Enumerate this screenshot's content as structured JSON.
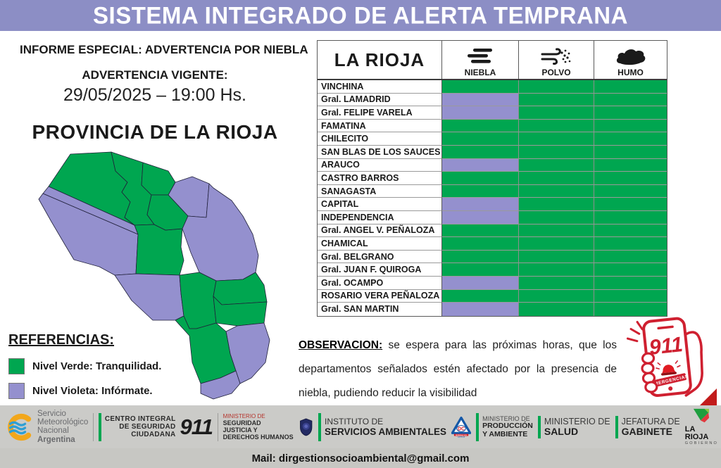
{
  "header": {
    "title": "SISTEMA INTEGRADO DE ALERTA TEMPRANA"
  },
  "alert": {
    "special_report": "INFORME ESPECIAL: ADVERTENCIA POR NIEBLA",
    "current_label": "ADVERTENCIA VIGENTE:",
    "current_datetime": "29/05/2025 – 19:00 Hs.",
    "province_title": "PROVINCIA DE LA RIOJA"
  },
  "references": {
    "title": "REFERENCIAS:",
    "items": [
      {
        "color": "green",
        "label": "Nivel Verde: Tranquilidad."
      },
      {
        "color": "violet",
        "label": "Nivel Violeta: Infórmate."
      }
    ]
  },
  "table": {
    "region_header": "LA RIOJA",
    "columns": [
      {
        "key": "niebla",
        "label": "NIEBLA",
        "icon": "fog-icon"
      },
      {
        "key": "polvo",
        "label": "POLVO",
        "icon": "dust-wind-icon"
      },
      {
        "key": "humo",
        "label": "HUMO",
        "icon": "smoke-icon"
      }
    ],
    "rows": [
      {
        "name": "VINCHINA",
        "niebla": "green",
        "polvo": "green",
        "humo": "green"
      },
      {
        "name": "Gral. LAMADRID",
        "niebla": "violet",
        "polvo": "green",
        "humo": "green"
      },
      {
        "name": "Gral. FELIPE VARELA",
        "niebla": "violet",
        "polvo": "green",
        "humo": "green"
      },
      {
        "name": "FAMATINA",
        "niebla": "green",
        "polvo": "green",
        "humo": "green"
      },
      {
        "name": "CHILECITO",
        "niebla": "green",
        "polvo": "green",
        "humo": "green"
      },
      {
        "name": "SAN BLAS DE LOS SAUCES",
        "niebla": "green",
        "polvo": "green",
        "humo": "green"
      },
      {
        "name": "ARAUCO",
        "niebla": "violet",
        "polvo": "green",
        "humo": "green"
      },
      {
        "name": "CASTRO BARROS",
        "niebla": "green",
        "polvo": "green",
        "humo": "green"
      },
      {
        "name": "SANAGASTA",
        "niebla": "green",
        "polvo": "green",
        "humo": "green"
      },
      {
        "name": "CAPITAL",
        "niebla": "violet",
        "polvo": "green",
        "humo": "green"
      },
      {
        "name": "INDEPENDENCIA",
        "niebla": "violet",
        "polvo": "green",
        "humo": "green"
      },
      {
        "name": "Gral. ANGEL V. PEÑALOZA",
        "niebla": "green",
        "polvo": "green",
        "humo": "green"
      },
      {
        "name": "CHAMICAL",
        "niebla": "green",
        "polvo": "green",
        "humo": "green"
      },
      {
        "name": "Gral. BELGRANO",
        "niebla": "green",
        "polvo": "green",
        "humo": "green"
      },
      {
        "name": "Gral. JUAN F. QUIROGA",
        "niebla": "green",
        "polvo": "green",
        "humo": "green"
      },
      {
        "name": "Gral. OCAMPO",
        "niebla": "violet",
        "polvo": "green",
        "humo": "green"
      },
      {
        "name": "ROSARIO VERA PEÑALOZA",
        "niebla": "green",
        "polvo": "green",
        "humo": "green"
      },
      {
        "name": "Gral. SAN MARTIN",
        "niebla": "violet",
        "polvo": "green",
        "humo": "green"
      }
    ]
  },
  "observation": {
    "label": "OBSERVACION:",
    "text": " se espera para las próximas horas, que los departamentos señalados estén afectado por la presencia de niebla, pudiendo reducir la visibilidad"
  },
  "emergency": {
    "number": "911",
    "label": "EMERGENCIAS"
  },
  "footer": {
    "smn": {
      "line1": "Servicio",
      "line2": "Meteorológico",
      "line3": "Nacional",
      "country": "Argentina"
    },
    "cisc": {
      "line1": "CENTRO INTEGRAL",
      "line2": "DE SEGURIDAD",
      "line3": "CIUDADANA",
      "number": "911"
    },
    "justicia": {
      "top": "MINISTERIO DE",
      "line1": "SEGURIDAD",
      "line2": "JUSTICIA Y",
      "line3": "DERECHOS HUMANOS"
    },
    "isa": {
      "line1": "INSTITUTO DE",
      "line2": "SERVICIOS AMBIENTALES"
    },
    "dc": {
      "abbr": "DC",
      "line1": "DEFENSA CIVIL",
      "line2": "LA RIOJA"
    },
    "produccion": {
      "top": "MINISTERIO DE",
      "line1": "PRODUCCIÓN",
      "line2": "Y AMBIENTE"
    },
    "salud": {
      "top": "MINISTERIO DE",
      "line1": "SALUD"
    },
    "gabinete": {
      "top": "JEFATURA DE",
      "line1": "GABINETE"
    },
    "larioja": {
      "line1": "LA RIOJA",
      "line2": "GOBIERNO"
    },
    "mail": "Mail: dirgestionsocioambiental@gmail.com"
  },
  "colors": {
    "banner": "#8c8ec5",
    "green": "#00a650",
    "violet": "#9490ce",
    "red": "#cf2030"
  }
}
